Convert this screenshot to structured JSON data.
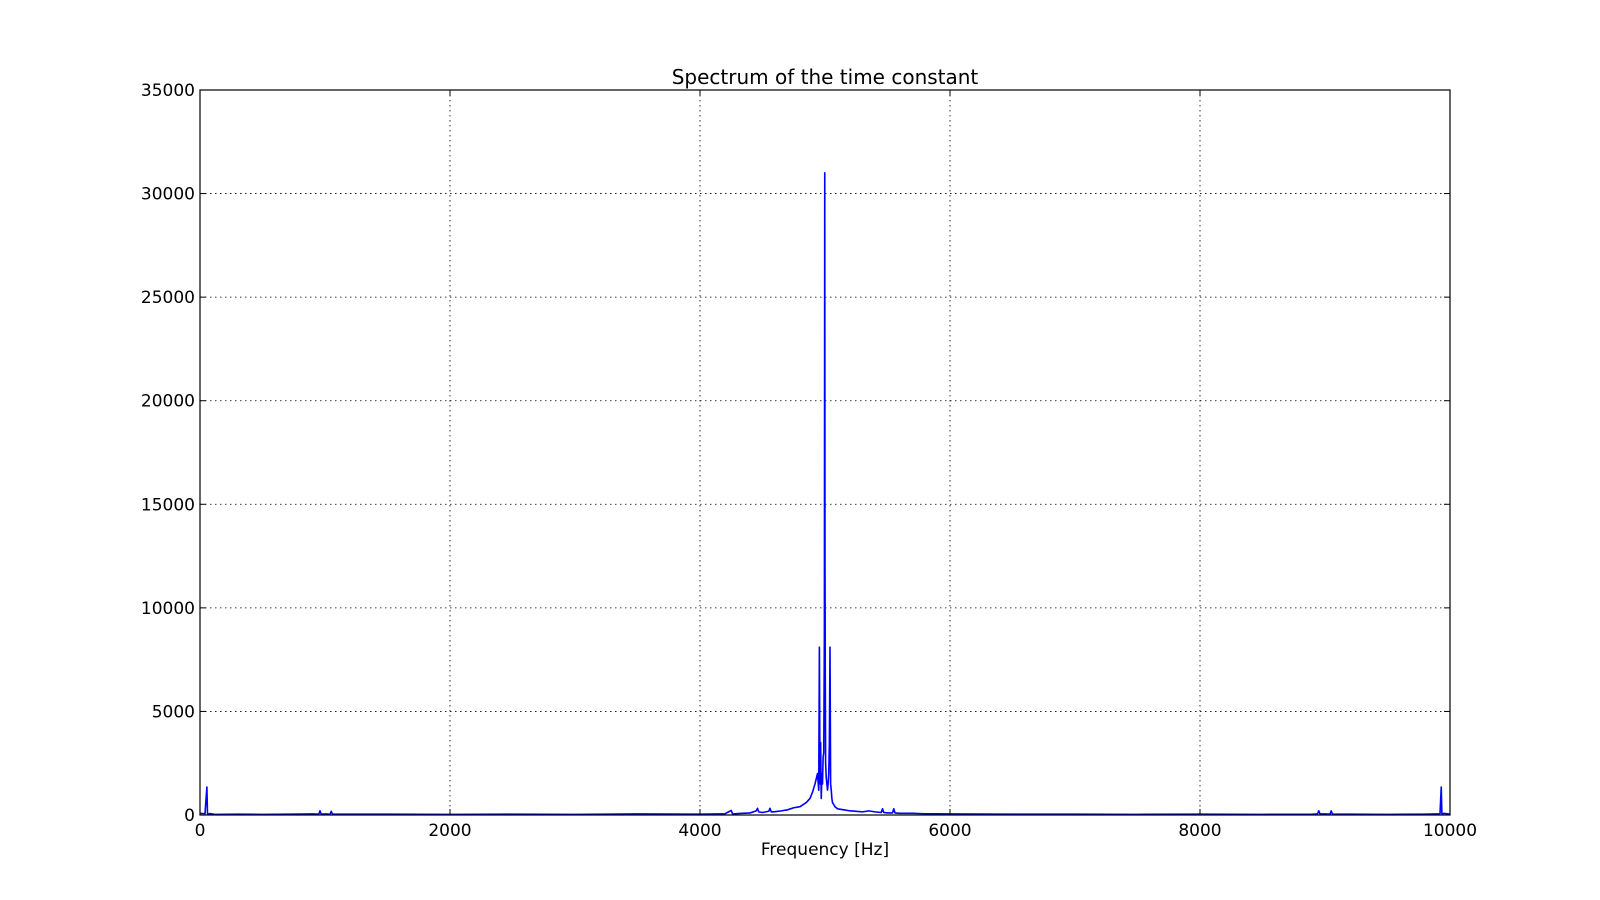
{
  "chart_data": {
    "type": "line",
    "title": "Spectrum of the time constant",
    "xlabel": "Frequency [Hz]",
    "ylabel": "",
    "xlim": [
      0,
      10000
    ],
    "ylim": [
      0,
      35000
    ],
    "xticks": [
      0,
      2000,
      4000,
      6000,
      8000,
      10000
    ],
    "xtick_labels": [
      "0",
      "2000",
      "4000",
      "6000",
      "8000",
      "10000"
    ],
    "yticks": [
      0,
      5000,
      10000,
      15000,
      20000,
      25000,
      30000,
      35000
    ],
    "ytick_labels": [
      "0",
      "5000",
      "10000",
      "15000",
      "20000",
      "25000",
      "30000",
      "35000"
    ],
    "grid": true,
    "series_color": "#0000ff",
    "series": [
      {
        "x": [
          0,
          40,
          55,
          60,
          65,
          80,
          120,
          300,
          500,
          900,
          950,
          960,
          970,
          1000,
          1040,
          1050,
          1060,
          1100,
          1500,
          2000,
          2500,
          3000,
          3500,
          4000,
          4200,
          4250,
          4260,
          4270,
          4300,
          4400,
          4450,
          4460,
          4470,
          4500,
          4550,
          4560,
          4570,
          4600,
          4650,
          4700,
          4750,
          4800,
          4850,
          4880,
          4900,
          4920,
          4940,
          4950,
          4955,
          4960,
          4965,
          4970,
          4975,
          4980,
          4985,
          4990,
          4995,
          4998,
          5000,
          5002,
          5005,
          5010,
          5015,
          5020,
          5025,
          5030,
          5035,
          5040,
          5045,
          5050,
          5055,
          5060,
          5070,
          5080,
          5100,
          5150,
          5200,
          5250,
          5300,
          5350,
          5400,
          5450,
          5460,
          5470,
          5500,
          5540,
          5550,
          5560,
          5600,
          5700,
          5800,
          5900,
          6000,
          6500,
          7000,
          7500,
          8000,
          8500,
          8900,
          8940,
          8950,
          8960,
          9000,
          9040,
          9050,
          9060,
          9200,
          9500,
          9800,
          9920,
          9930,
          9935,
          9940,
          9950,
          10000
        ],
        "y": [
          80,
          60,
          1350,
          60,
          40,
          70,
          30,
          40,
          30,
          50,
          40,
          200,
          40,
          50,
          40,
          180,
          40,
          40,
          40,
          30,
          40,
          30,
          50,
          40,
          60,
          220,
          60,
          50,
          70,
          100,
          200,
          320,
          150,
          120,
          180,
          320,
          150,
          160,
          200,
          250,
          350,
          400,
          600,
          800,
          1100,
          1500,
          2000,
          1200,
          8100,
          1500,
          3500,
          800,
          2000,
          1500,
          2800,
          3000,
          8600,
          31000,
          12500,
          7000,
          2500,
          1800,
          1500,
          1200,
          1500,
          2000,
          3500,
          8100,
          1500,
          1200,
          800,
          600,
          500,
          400,
          300,
          250,
          200,
          180,
          150,
          200,
          150,
          120,
          300,
          120,
          100,
          100,
          300,
          100,
          80,
          80,
          60,
          60,
          50,
          40,
          40,
          30,
          40,
          30,
          40,
          50,
          200,
          50,
          50,
          40,
          200,
          40,
          40,
          30,
          40,
          60,
          1350,
          60,
          40,
          80,
          40
        ]
      }
    ]
  }
}
